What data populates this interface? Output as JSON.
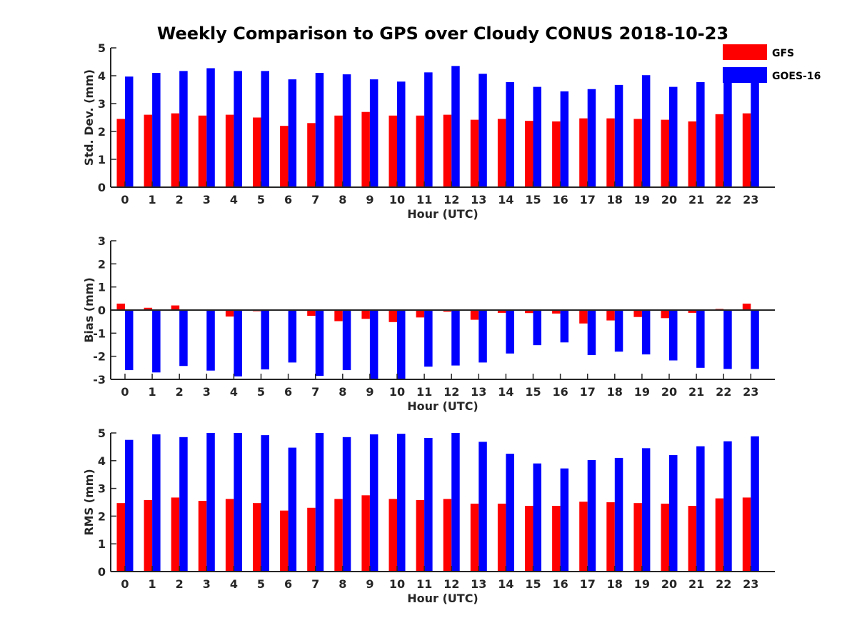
{
  "chart_data": [
    {
      "type": "bar",
      "title": "Weekly Comparison to GPS over Cloudy CONUS 2018-10-23",
      "xlabel": "Hour (UTC)",
      "ylabel": "Std. Dev. (mm)",
      "ylim": [
        0,
        5
      ],
      "yticks": [
        "0",
        "1",
        "2",
        "3",
        "4",
        "5"
      ],
      "categories": [
        "0",
        "1",
        "2",
        "3",
        "4",
        "5",
        "6",
        "7",
        "8",
        "9",
        "10",
        "11",
        "12",
        "13",
        "14",
        "15",
        "16",
        "17",
        "18",
        "19",
        "20",
        "21",
        "22",
        "23"
      ],
      "series": [
        {
          "name": "GFS",
          "color": "#ff0000",
          "values": [
            2.45,
            2.6,
            2.65,
            2.57,
            2.6,
            2.5,
            2.2,
            2.3,
            2.57,
            2.7,
            2.57,
            2.57,
            2.6,
            2.42,
            2.45,
            2.38,
            2.36,
            2.47,
            2.47,
            2.45,
            2.42,
            2.36,
            2.62,
            2.65
          ]
        },
        {
          "name": "GOES-16",
          "color": "#0000ff",
          "values": [
            3.97,
            4.1,
            4.17,
            4.27,
            4.17,
            4.17,
            3.87,
            4.1,
            4.05,
            3.87,
            3.79,
            4.12,
            4.35,
            4.07,
            3.77,
            3.6,
            3.44,
            3.52,
            3.67,
            4.02,
            3.6,
            3.77,
            3.97,
            4.0
          ]
        }
      ],
      "legend": "top-right"
    },
    {
      "type": "bar",
      "xlabel": "Hour (UTC)",
      "ylabel": "Bias (mm)",
      "ylim": [
        -3,
        3
      ],
      "yticks": [
        "-3",
        "-2",
        "-1",
        "0",
        "1",
        "2",
        "3"
      ],
      "categories": [
        "0",
        "1",
        "2",
        "3",
        "4",
        "5",
        "6",
        "7",
        "8",
        "9",
        "10",
        "11",
        "12",
        "13",
        "14",
        "15",
        "16",
        "17",
        "18",
        "19",
        "20",
        "21",
        "22",
        "23"
      ],
      "series": [
        {
          "name": "GFS",
          "color": "#ff0000",
          "values": [
            0.28,
            0.1,
            0.2,
            0.02,
            -0.28,
            -0.05,
            0.0,
            -0.25,
            -0.48,
            -0.38,
            -0.52,
            -0.32,
            -0.07,
            -0.42,
            -0.12,
            -0.13,
            -0.15,
            -0.58,
            -0.45,
            -0.3,
            -0.35,
            -0.12,
            0.05,
            0.28
          ]
        },
        {
          "name": "GOES-16",
          "color": "#0000ff",
          "values": [
            -2.6,
            -2.7,
            -2.42,
            -2.62,
            -2.87,
            -2.57,
            -2.27,
            -2.85,
            -2.6,
            -3.0,
            -3.0,
            -2.45,
            -2.4,
            -2.27,
            -1.88,
            -1.52,
            -1.4,
            -1.95,
            -1.8,
            -1.92,
            -2.18,
            -2.5,
            -2.55,
            -2.55
          ]
        }
      ]
    },
    {
      "type": "bar",
      "xlabel": "Hour (UTC)",
      "ylabel": "RMS (mm)",
      "ylim": [
        0,
        5
      ],
      "yticks": [
        "0",
        "1",
        "2",
        "3",
        "4",
        "5"
      ],
      "categories": [
        "0",
        "1",
        "2",
        "3",
        "4",
        "5",
        "6",
        "7",
        "8",
        "9",
        "10",
        "11",
        "12",
        "13",
        "14",
        "15",
        "16",
        "17",
        "18",
        "19",
        "20",
        "21",
        "22",
        "23"
      ],
      "series": [
        {
          "name": "GFS",
          "color": "#ff0000",
          "values": [
            2.47,
            2.58,
            2.67,
            2.55,
            2.62,
            2.47,
            2.2,
            2.3,
            2.62,
            2.75,
            2.62,
            2.58,
            2.62,
            2.45,
            2.45,
            2.37,
            2.37,
            2.52,
            2.5,
            2.47,
            2.45,
            2.37,
            2.64,
            2.67
          ]
        },
        {
          "name": "GOES-16",
          "color": "#0000ff",
          "values": [
            4.75,
            4.95,
            4.85,
            5.0,
            5.0,
            4.92,
            4.47,
            5.0,
            4.85,
            4.95,
            4.97,
            4.82,
            5.0,
            4.68,
            4.25,
            3.9,
            3.72,
            4.02,
            4.1,
            4.45,
            4.2,
            4.52,
            4.7,
            4.88
          ]
        }
      ]
    }
  ]
}
